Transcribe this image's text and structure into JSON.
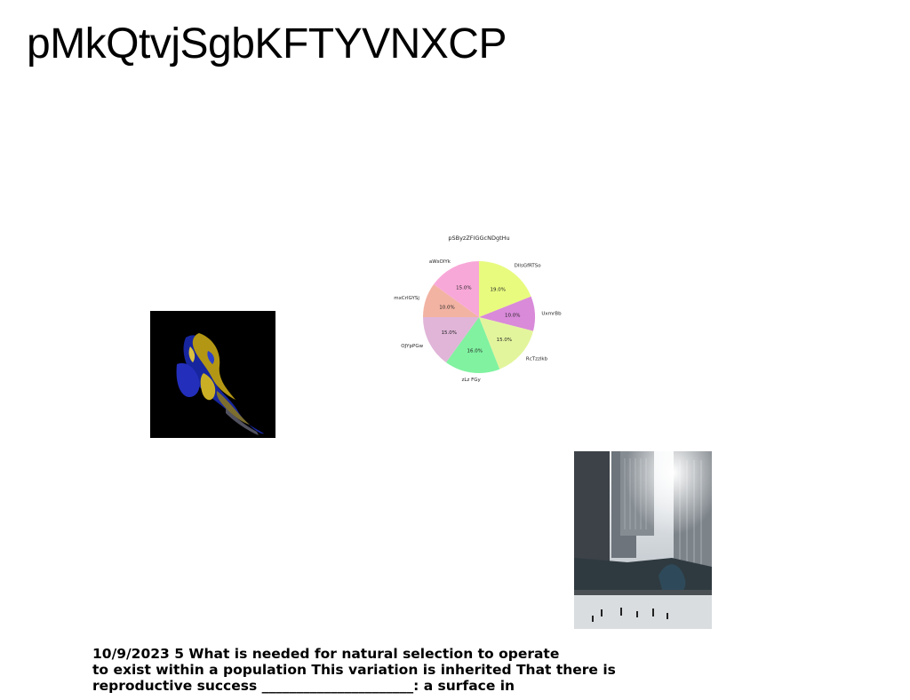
{
  "page": {
    "title": "pMkQtvjSgbKFTYVNXCP"
  },
  "images": {
    "abstract": "dark abstract fractal image in blue and yellow",
    "city": "city plaza with ice rink and skyscrapers"
  },
  "chart_data": {
    "type": "pie",
    "title": "pSByzZFIGGcNDgtHu",
    "slices": [
      {
        "label": "DllsGfRTSo",
        "value": 19.0,
        "pct_label": "19.0%",
        "color": "#e8fb7f"
      },
      {
        "label": "UxmrBb",
        "value": 10.0,
        "pct_label": "10.0%",
        "color": "#d98ad9"
      },
      {
        "label": "RcTzzlkb",
        "value": 15.0,
        "pct_label": "15.0%",
        "color": "#e3f59c"
      },
      {
        "label": "zLz FGy",
        "value": 16.0,
        "pct_label": "16.0%",
        "color": "#80f2a0"
      },
      {
        "label": "OJYpPGw",
        "value": 15.0,
        "pct_label": "15.0%",
        "color": "#e0b5d8"
      },
      {
        "label": "mxCrlGYSj",
        "value": 10.0,
        "pct_label": "10.0%",
        "color": "#f2b3a3"
      },
      {
        "label": "aWsOlYk",
        "value": 15.0,
        "pct_label": "15.0%",
        "color": "#f8a8d8"
      }
    ]
  },
  "body_text": {
    "line1": "10/9/2023 5 What is needed for natural selection to operate",
    "line2": "to exist within a population This variation is inherited That there is",
    "line3": "reproductive success ______________________: a surface in"
  }
}
